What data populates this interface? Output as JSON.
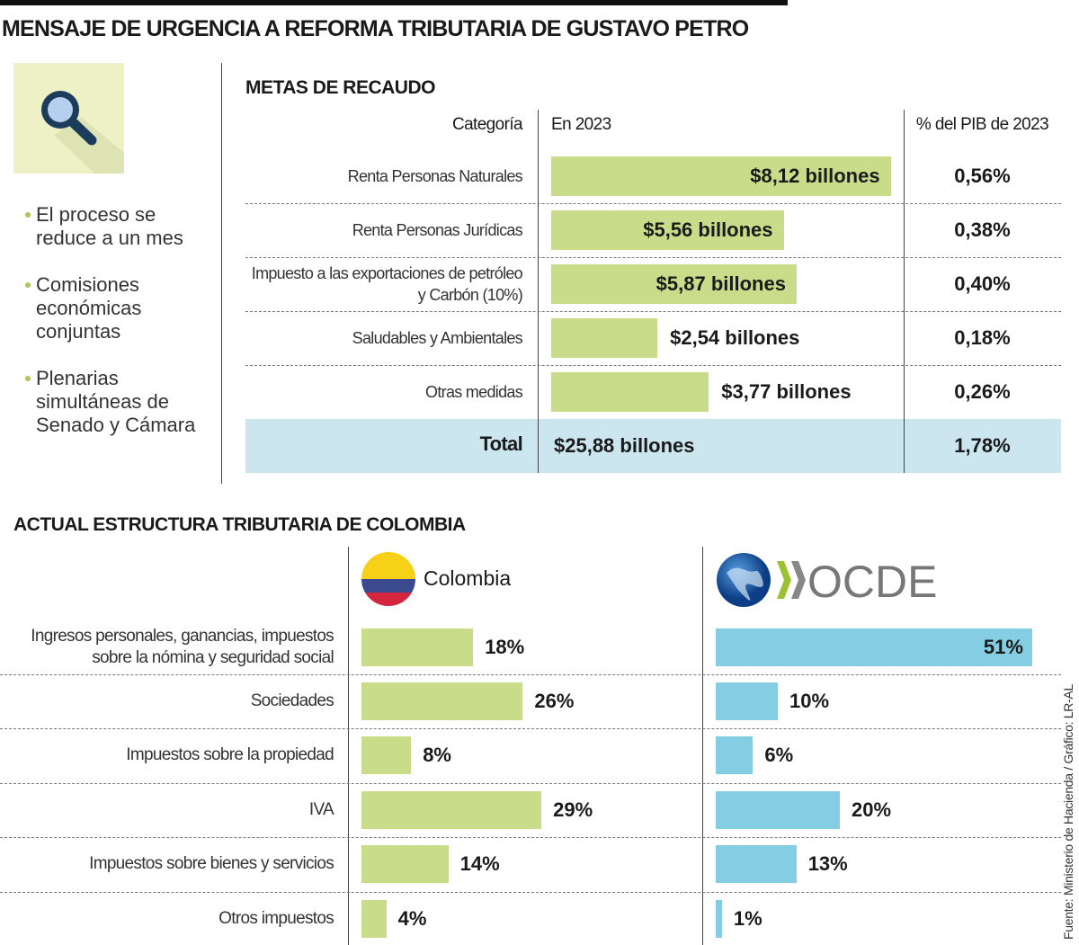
{
  "title": "MENSAJE DE URGENCIA A REFORMA TRIBUTARIA DE GUSTAVO PETRO",
  "icon": "magnifying-glass-icon",
  "bullets": [
    "El proceso se reduce a un mes",
    "Comisiones económicas conjuntas",
    "Plenarias simultáneas de Senado y Cámara"
  ],
  "colors": {
    "green": "#c8dc8a",
    "blue": "#84cde3",
    "total_bg": "#cce6f0"
  },
  "chart_data": [
    {
      "type": "table",
      "title": "METAS DE RECAUDO",
      "columns": [
        "Categoría",
        "En 2023",
        "% del PIB de 2023"
      ],
      "rows": [
        {
          "category": "Renta Personas Naturales",
          "value": 8.12,
          "label": "$8,12 billones",
          "pib": "0,56%"
        },
        {
          "category": "Renta Personas Jurídicas",
          "value": 5.56,
          "label": "$5,56 billones",
          "pib": "0,38%"
        },
        {
          "category": "Impuesto a las exportaciones de petróleo y Carbón (10%)",
          "value": 5.87,
          "label": "$5,87 billones",
          "pib": "0,40%"
        },
        {
          "category": "Saludables y Ambientales",
          "value": 2.54,
          "label": "$2,54 billones",
          "pib": "0,18%"
        },
        {
          "category": "Otras medidas",
          "value": 3.77,
          "label": "$3,77 billones",
          "pib": "0,26%"
        }
      ],
      "total": {
        "category": "Total",
        "label": "$25,88 billones",
        "pib": "1,78%"
      }
    },
    {
      "type": "bar",
      "title": "ACTUAL ESTRUCTURA TRIBUTARIA DE COLOMBIA",
      "categories": [
        "Ingresos personales, ganancias, impuestos sobre la nómina y seguridad social",
        "Sociedades",
        "Impuestos sobre la propiedad",
        "IVA",
        "Impuestos sobre bienes y servicios",
        "Otros impuestos"
      ],
      "series": [
        {
          "name": "Colombia",
          "values": [
            18,
            26,
            8,
            29,
            14,
            4
          ]
        },
        {
          "name": "OCDE",
          "values": [
            51,
            10,
            6,
            20,
            13,
            1
          ]
        }
      ]
    }
  ],
  "source": "Fuente: Ministerio de Hacienda / Gráfico: LR-AL"
}
